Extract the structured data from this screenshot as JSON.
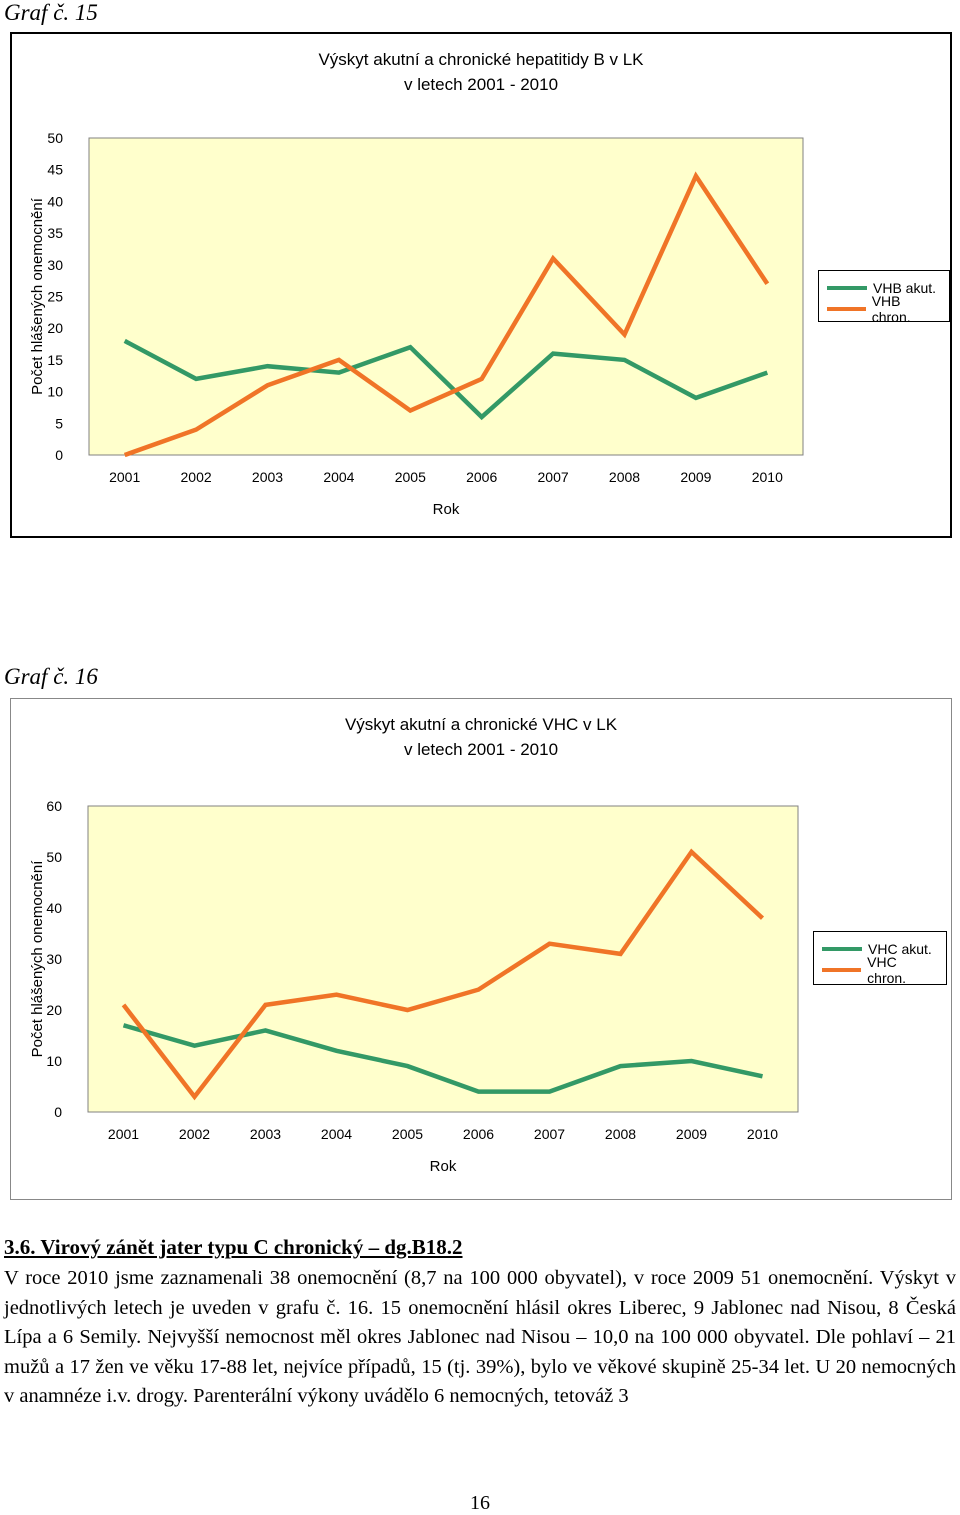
{
  "chart1_caption": "Graf č. 15",
  "chart2_caption": "Graf č. 16",
  "chart_data": [
    {
      "type": "line",
      "title": "Výskyt akutní a chronické hepatitidy B v LK",
      "subtitle": "v letech 2001 - 2010",
      "xlabel": "Rok",
      "ylabel": "Počet hlášených onemocnění",
      "categories": [
        "2001",
        "2002",
        "2003",
        "2004",
        "2005",
        "2006",
        "2007",
        "2008",
        "2009",
        "2010"
      ],
      "yticks": [
        "0",
        "5",
        "10",
        "15",
        "20",
        "25",
        "30",
        "35",
        "40",
        "45",
        "50"
      ],
      "ylim": [
        0,
        50
      ],
      "grid": false,
      "legend_position": "right",
      "plot_background": "#FFFFCC",
      "series": [
        {
          "name": "VHB akut.",
          "color": "#339966",
          "values": [
            18,
            12,
            14,
            13,
            17,
            6,
            16,
            15,
            9,
            13
          ]
        },
        {
          "name": "VHB chron.",
          "color": "#F07427",
          "values": [
            0,
            4,
            11,
            15,
            7,
            12,
            31,
            19,
            44,
            27
          ]
        }
      ]
    },
    {
      "type": "line",
      "title": "Výskyt akutní a chronické VHC v LK",
      "subtitle": "v letech 2001 - 2010",
      "xlabel": "Rok",
      "ylabel": "Počet hlášených onemocnění",
      "categories": [
        "2001",
        "2002",
        "2003",
        "2004",
        "2005",
        "2006",
        "2007",
        "2008",
        "2009",
        "2010"
      ],
      "yticks": [
        "0",
        "10",
        "20",
        "30",
        "40",
        "50",
        "60"
      ],
      "ylim": [
        0,
        60
      ],
      "grid": false,
      "legend_position": "right",
      "plot_background": "#FFFFCC",
      "series": [
        {
          "name": "VHC akut.",
          "color": "#339966",
          "values": [
            17,
            13,
            16,
            12,
            9,
            4,
            4,
            9,
            10,
            7
          ]
        },
        {
          "name": "VHC chron.",
          "color": "#F07427",
          "values": [
            21,
            3,
            21,
            23,
            20,
            24,
            33,
            31,
            51,
            38
          ]
        }
      ]
    }
  ],
  "section_heading": "3.6. Virový zánět jater typu C chronický – dg.B18.2",
  "paragraph": "V roce 2010 jsme zaznamenali 38 onemocnění (8,7 na 100 000 obyvatel), v roce 2009 51 onemocnění. Výskyt v jednotlivých letech je uveden v grafu č. 16. 15 onemocnění hlásil okres Liberec, 9 Jablonec nad Nisou, 8 Česká Lípa a 6 Semily. Nejvyšší nemocnost měl okres Jablonec nad Nisou – 10,0 na 100 000 obyvatel. Dle pohlaví – 21 mužů a 17 žen ve věku 17-88 let, nejvíce případů, 15 (tj. 39%), bylo ve věkové skupině 25-34 let. U 20 nemocných v anamnéze i.v. drogy. Parenterální výkony uvádělo 6 nemocných, tetováž 3",
  "page_number": "16"
}
